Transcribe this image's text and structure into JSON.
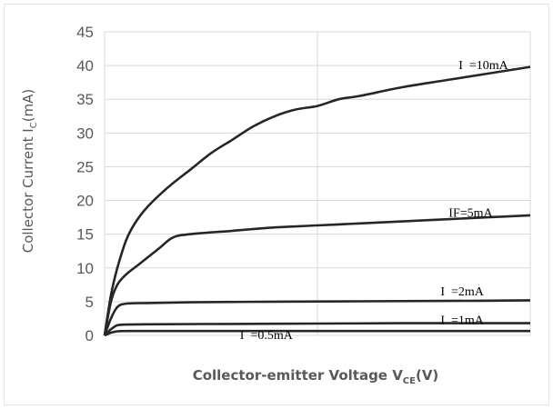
{
  "chart_data": {
    "type": "line",
    "title": "",
    "xlabel": "Collector-emitter Voltage V",
    "xlabel_sub": "CE",
    "xlabel_tail": "(V)",
    "ylabel": "Collector Current I",
    "ylabel_sub": "C",
    "ylabel_tail": "(mA)",
    "xlim": [
      0,
      10
    ],
    "ylim": [
      0,
      45
    ],
    "yticks": [
      "0",
      "5",
      "10",
      "15",
      "20",
      "25",
      "30",
      "35",
      "40",
      "45"
    ],
    "x_tick_labels_shown": false,
    "grid": {
      "horizontal": true,
      "vertical": true,
      "vertical_lines_at": [
        0,
        5,
        10
      ]
    },
    "line_color": "#262626",
    "grid_color": "#d9d9d9",
    "series": [
      {
        "name": "I F =10mA",
        "label_text": "I  =10mA",
        "x": [
          0,
          0.15,
          0.3,
          0.5,
          0.7,
          1.0,
          1.5,
          2.0,
          2.5,
          3.0,
          3.5,
          4.0,
          4.5,
          5.0,
          5.5,
          6.0,
          7.0,
          8.0,
          9.0,
          10.0
        ],
        "y": [
          0,
          6,
          10,
          14,
          16.5,
          19,
          22,
          24.5,
          27,
          29,
          31,
          32.5,
          33.5,
          34,
          35,
          35.5,
          36.8,
          37.8,
          38.8,
          39.8
        ]
      },
      {
        "name": "IF=5mA",
        "label_text": "IF=5mA",
        "x": [
          0,
          0.15,
          0.3,
          0.5,
          0.8,
          1.0,
          1.3,
          1.6,
          2.0,
          3.0,
          4.0,
          5.0,
          6.0,
          7.0,
          8.0,
          9.0,
          10.0
        ],
        "y": [
          0,
          5,
          7.5,
          9,
          10.5,
          11.5,
          13,
          14.5,
          15,
          15.5,
          16,
          16.3,
          16.6,
          16.9,
          17.2,
          17.5,
          17.8
        ]
      },
      {
        "name": "IF =2mA",
        "label_text": "I  =2mA",
        "x": [
          0,
          0.15,
          0.3,
          0.5,
          1.0,
          2.0,
          4.0,
          6.0,
          8.0,
          10.0
        ],
        "y": [
          0,
          2.5,
          4.2,
          4.7,
          4.8,
          4.9,
          5.0,
          5.05,
          5.1,
          5.2
        ]
      },
      {
        "name": "IF =1mA",
        "label_text": "I  =1mA",
        "x": [
          0,
          0.15,
          0.3,
          0.5,
          1.0,
          3.0,
          5.0,
          7.0,
          10.0
        ],
        "y": [
          0,
          0.9,
          1.5,
          1.6,
          1.65,
          1.7,
          1.75,
          1.8,
          1.8
        ]
      },
      {
        "name": "IF =0.5mA",
        "label_text": "I  =0.5mA",
        "x": [
          0,
          0.15,
          0.3,
          0.5,
          1.0,
          5.0,
          10.0
        ],
        "y": [
          0,
          0.4,
          0.6,
          0.65,
          0.65,
          0.65,
          0.65
        ]
      }
    ],
    "series_label_positions": [
      {
        "x": 8.9,
        "y": 40.0
      },
      {
        "x": 8.6,
        "y": 18.1
      },
      {
        "x": 8.4,
        "y": 6.5
      },
      {
        "x": 8.4,
        "y": 2.2
      },
      {
        "x": 3.8,
        "y": 0.0
      }
    ]
  }
}
